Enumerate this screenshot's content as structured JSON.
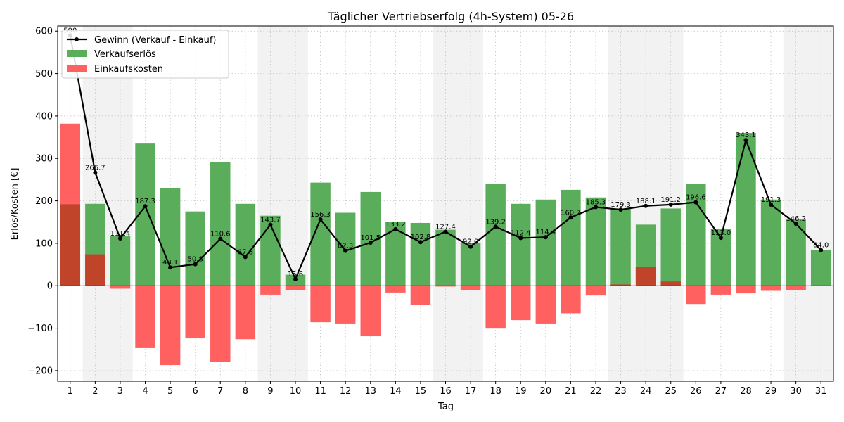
{
  "chart_data": {
    "type": "bar",
    "title": "Täglicher Vertriebserfolg (4h-System) 05-26",
    "xlabel": "Tag",
    "ylabel": "Erlös/Kosten [€]",
    "ylim": [
      -225,
      612
    ],
    "yticks": [
      -200,
      -100,
      0,
      100,
      200,
      300,
      400,
      500,
      600
    ],
    "grid": true,
    "legend_position": "top-left",
    "categories": [
      "1",
      "2",
      "3",
      "4",
      "5",
      "6",
      "7",
      "8",
      "9",
      "10",
      "11",
      "12",
      "13",
      "14",
      "15",
      "16",
      "17",
      "18",
      "19",
      "20",
      "21",
      "22",
      "23",
      "24",
      "25",
      "26",
      "27",
      "28",
      "29",
      "30",
      "31"
    ],
    "weekend_days": [
      "2",
      "3",
      "9",
      "10",
      "16",
      "17",
      "23",
      "24",
      "25",
      "30",
      "31"
    ],
    "series": [
      {
        "name": "Verkaufserlös",
        "type": "bar",
        "color": "#5aad5a",
        "values": [
          192,
          193,
          118,
          335,
          230,
          175,
          291,
          193,
          165,
          26,
          243,
          172,
          221,
          150,
          148,
          132,
          100,
          240,
          193,
          203,
          226,
          208,
          182,
          144,
          182,
          240,
          134,
          360,
          203,
          156,
          84
        ]
      },
      {
        "name": "Einkaufskosten",
        "type": "bar",
        "color": "#ff6161",
        "values": [
          382,
          74,
          -7,
          -147,
          -187,
          -124,
          -180,
          -126,
          -21,
          -10,
          -86,
          -89,
          -119,
          -16,
          -45,
          -2,
          -10,
          -101,
          -81,
          -89,
          -65,
          -23,
          3,
          44,
          10,
          -43,
          -21,
          -18,
          -12,
          -11,
          0
        ]
      },
      {
        "name": "Gewinn (Verkauf - Einkauf)",
        "type": "line",
        "color": "#000000",
        "values": [
          590,
          266.7,
          111.4,
          187.3,
          43.1,
          50.8,
          110.6,
          67.8,
          143.7,
          15.6,
          156.3,
          82.3,
          101.5,
          133.2,
          102.8,
          127.4,
          92.0,
          139.2,
          112.4,
          114.4,
          160.7,
          185.3,
          179.3,
          188.1,
          191.2,
          196.6,
          113.0,
          343.1,
          191.3,
          146.2,
          84.0
        ],
        "labels": [
          "590",
          "266.7",
          "111.4",
          "187.3",
          "43.1",
          "50.8",
          "110.6",
          "67.8",
          "143.7",
          "15.6",
          "156.3",
          "82.3",
          "101.5",
          "133.2",
          "102.8",
          "127.4",
          "92.0",
          "139.2",
          "112.4",
          "114.4",
          "160.7",
          "185.3",
          "179.3",
          "188.1",
          "191.2",
          "196.6",
          "113.0",
          "343.1",
          "191.3",
          "146.2",
          "84.0"
        ]
      }
    ],
    "overlap_color": "#c0442a"
  }
}
